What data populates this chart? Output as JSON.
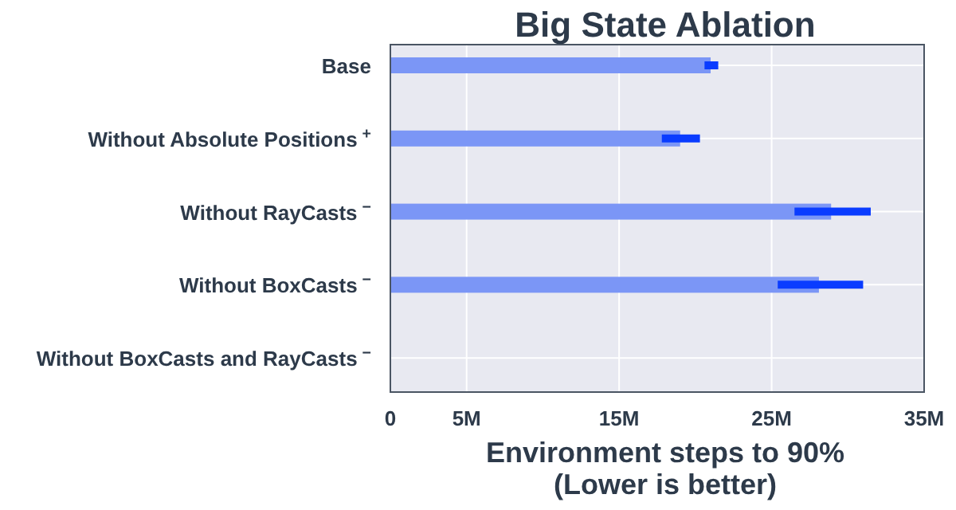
{
  "chart_data": {
    "type": "bar",
    "orientation": "horizontal",
    "title": "Big State Ablation",
    "xlabel": "Environment steps to 90%\n(Lower is better)",
    "categories": [
      "Base",
      "Without Absolute Positions$^{+}$",
      "Without RayCasts$^{−}$",
      "Without BoxCasts$^{−}$",
      "Without BoxCasts and RayCasts$^{−}$"
    ],
    "values": [
      21000000,
      19000000,
      28900000,
      28100000,
      null
    ],
    "errors": [
      [
        20600000,
        21500000
      ],
      [
        17800000,
        20300000
      ],
      [
        26500000,
        31500000
      ],
      [
        25400000,
        31000000
      ],
      null
    ],
    "color": "#7b96f6",
    "xlim": [
      0,
      35000000
    ],
    "xticks": [
      {
        "value": 0,
        "label": "0"
      },
      {
        "value": 5000000,
        "label": "5M"
      },
      {
        "value": 15000000,
        "label": "15M"
      },
      {
        "value": 25000000,
        "label": "25M"
      },
      {
        "value": 35000000,
        "label": "35M"
      }
    ],
    "grid": true
  }
}
